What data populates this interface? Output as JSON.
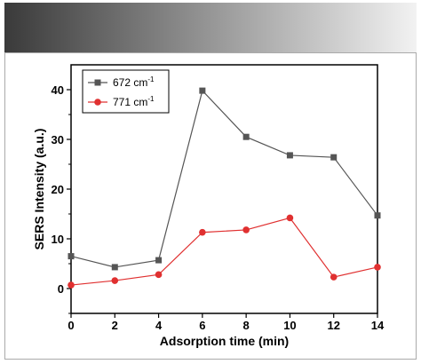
{
  "header": {
    "gradient_start": "#3a3a3a",
    "gradient_end": "#f2f2f2"
  },
  "border_color": "#aaaaaa",
  "chart_data": {
    "type": "line",
    "title": "",
    "xlabel": "Adsorption time (min)",
    "ylabel": "SERS Intensity (a.u.)",
    "xlim": [
      0,
      14
    ],
    "ylim": [
      -5,
      45
    ],
    "x": [
      0,
      2,
      4,
      6,
      8,
      10,
      12,
      14
    ],
    "x_ticks": [
      0,
      2,
      4,
      6,
      8,
      10,
      12,
      14
    ],
    "y_ticks": [
      0,
      10,
      20,
      30,
      40
    ],
    "grid": false,
    "legend": "top-left",
    "series": [
      {
        "name": "672 cm",
        "superscript": "-1",
        "color": "#555555",
        "marker": "square",
        "values": [
          6.5,
          4.3,
          5.7,
          39.8,
          30.5,
          26.8,
          26.4,
          14.7
        ]
      },
      {
        "name": "771 cm",
        "superscript": "-1",
        "color": "#e03030",
        "marker": "circle",
        "values": [
          0.7,
          1.6,
          2.8,
          11.3,
          11.8,
          14.2,
          2.3,
          4.3
        ]
      }
    ]
  }
}
